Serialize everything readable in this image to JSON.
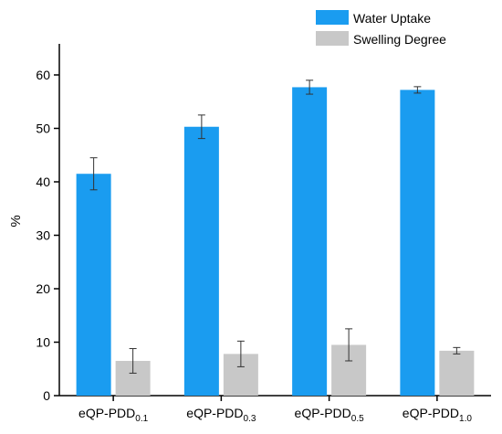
{
  "chart_data": {
    "type": "bar",
    "title": "",
    "xlabel": "",
    "ylabel": "%",
    "ylim": [
      0,
      65
    ],
    "yticks": [
      0,
      10,
      20,
      30,
      40,
      50,
      60
    ],
    "grid": false,
    "legend_position": "top-right",
    "categories": [
      {
        "base": "eQP-PDD",
        "sub": "0.1"
      },
      {
        "base": "eQP-PDD",
        "sub": "0.3"
      },
      {
        "base": "eQP-PDD",
        "sub": "0.5"
      },
      {
        "base": "eQP-PDD",
        "sub": "1.0"
      }
    ],
    "series": [
      {
        "name": "Water Uptake",
        "color": "#1a9cf0",
        "values": [
          41.5,
          50.3,
          57.7,
          57.2
        ],
        "errors": [
          3.0,
          2.2,
          1.3,
          0.6
        ]
      },
      {
        "name": "Swelling Degree",
        "color": "#c8c8c8",
        "values": [
          6.5,
          7.8,
          9.5,
          8.4
        ],
        "errors": [
          2.3,
          2.4,
          3.0,
          0.6
        ]
      }
    ]
  }
}
